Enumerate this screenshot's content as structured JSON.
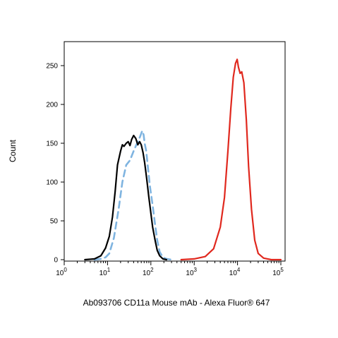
{
  "chart_data": {
    "type": "line",
    "title": "",
    "xlabel": "Ab093706 CD11a Mouse mAb - Alexa Fluor® 647",
    "ylabel": "Count",
    "xscale": "log",
    "xlim": [
      1,
      100000
    ],
    "ylim": [
      0,
      270
    ],
    "x_ticks": [
      {
        "value": 1,
        "base": "10",
        "exp": "0"
      },
      {
        "value": 10,
        "base": "10",
        "exp": "1"
      },
      {
        "value": 100,
        "base": "10",
        "exp": "2"
      },
      {
        "value": 1000,
        "base": "10",
        "exp": "3"
      },
      {
        "value": 10000,
        "base": "10",
        "exp": "4"
      },
      {
        "value": 100000,
        "base": "10",
        "exp": "5"
      }
    ],
    "y_ticks": [
      0,
      50,
      100,
      150,
      200,
      250
    ],
    "grid": false,
    "series": [
      {
        "color": "#7fb4e0",
        "style": "dashed",
        "x": [
          5,
          7,
          9,
          11,
          14,
          18,
          22,
          27,
          33,
          40,
          48,
          56,
          63,
          68,
          72,
          78,
          85,
          95,
          110,
          125,
          140,
          160,
          190,
          230,
          300
        ],
        "y": [
          0,
          1,
          3,
          8,
          28,
          65,
          100,
          122,
          128,
          140,
          150,
          158,
          166,
          161,
          150,
          140,
          120,
          95,
          70,
          45,
          25,
          10,
          3,
          1,
          0
        ]
      },
      {
        "color": "#000000",
        "style": "solid",
        "x": [
          3,
          5,
          7,
          9,
          11,
          13,
          15,
          17,
          20,
          22,
          24,
          27,
          30,
          33,
          36,
          40,
          45,
          50,
          55,
          60,
          66,
          72,
          80,
          90,
          100,
          110,
          125,
          140,
          160,
          190,
          230
        ],
        "y": [
          0,
          1,
          5,
          15,
          30,
          55,
          88,
          122,
          140,
          148,
          146,
          150,
          152,
          147,
          155,
          160,
          156,
          148,
          152,
          148,
          138,
          125,
          105,
          80,
          60,
          42,
          25,
          12,
          5,
          1,
          0
        ]
      },
      {
        "color": "#e0281e",
        "style": "solid",
        "x": [
          500,
          1000,
          1800,
          2800,
          4000,
          5000,
          6000,
          7000,
          8000,
          9000,
          9800,
          10500,
          11500,
          12500,
          14000,
          16000,
          18000,
          21000,
          25000,
          30000,
          40000,
          60000,
          100000
        ],
        "y": [
          0,
          1,
          4,
          14,
          42,
          80,
          140,
          195,
          235,
          253,
          258,
          248,
          240,
          242,
          228,
          180,
          120,
          65,
          25,
          8,
          2,
          0,
          0
        ]
      }
    ]
  }
}
